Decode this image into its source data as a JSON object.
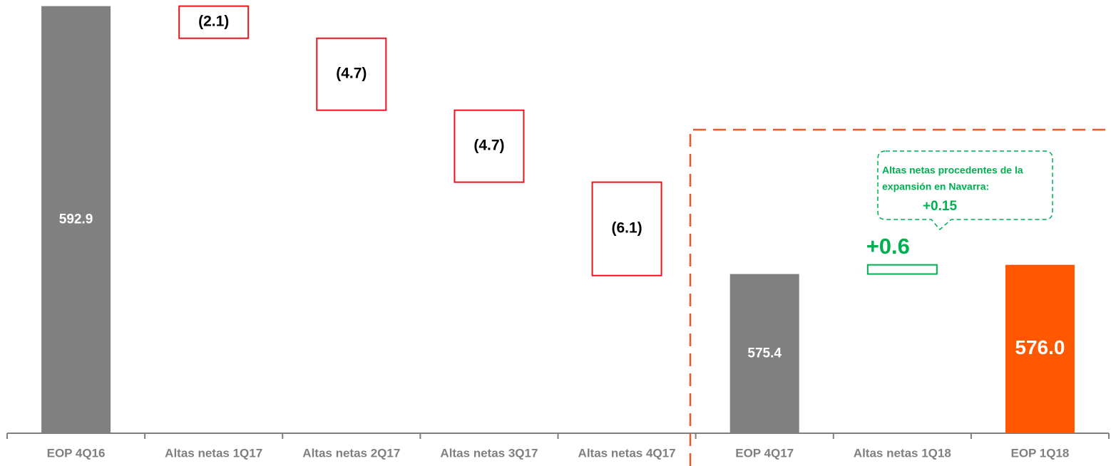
{
  "chart_data": {
    "type": "waterfall",
    "categories": [
      "EOP 4Q16",
      "Altas netas 1Q17",
      "Altas netas 2Q17",
      "Altas netas 3Q17",
      "Altas netas 4Q17",
      "EOP 4Q17",
      "Altas netas 1Q18",
      "EOP 1Q18"
    ],
    "values": [
      592.9,
      -2.1,
      -4.7,
      -4.7,
      -6.1,
      575.4,
      0.6,
      576.0
    ],
    "value_labels": [
      "592.9",
      "(2.1)",
      "(4.7)",
      "(4.7)",
      "(6.1)",
      "575.4",
      "+0.6",
      "576.0"
    ],
    "measure": [
      "absolute",
      "relative",
      "relative",
      "relative",
      "relative",
      "absolute",
      "relative",
      "absolute"
    ],
    "colors": [
      "#808080",
      "#e8161c",
      "#e8161c",
      "#e8161c",
      "#e8161c",
      "#808080",
      "#00b050",
      "#ff5800"
    ],
    "ylim": [
      565,
      593.3
    ],
    "annotation": {
      "lines": [
        "Altas netas procedentes de la",
        "expansión en Navarra:"
      ],
      "value_label": "+0.15"
    }
  }
}
